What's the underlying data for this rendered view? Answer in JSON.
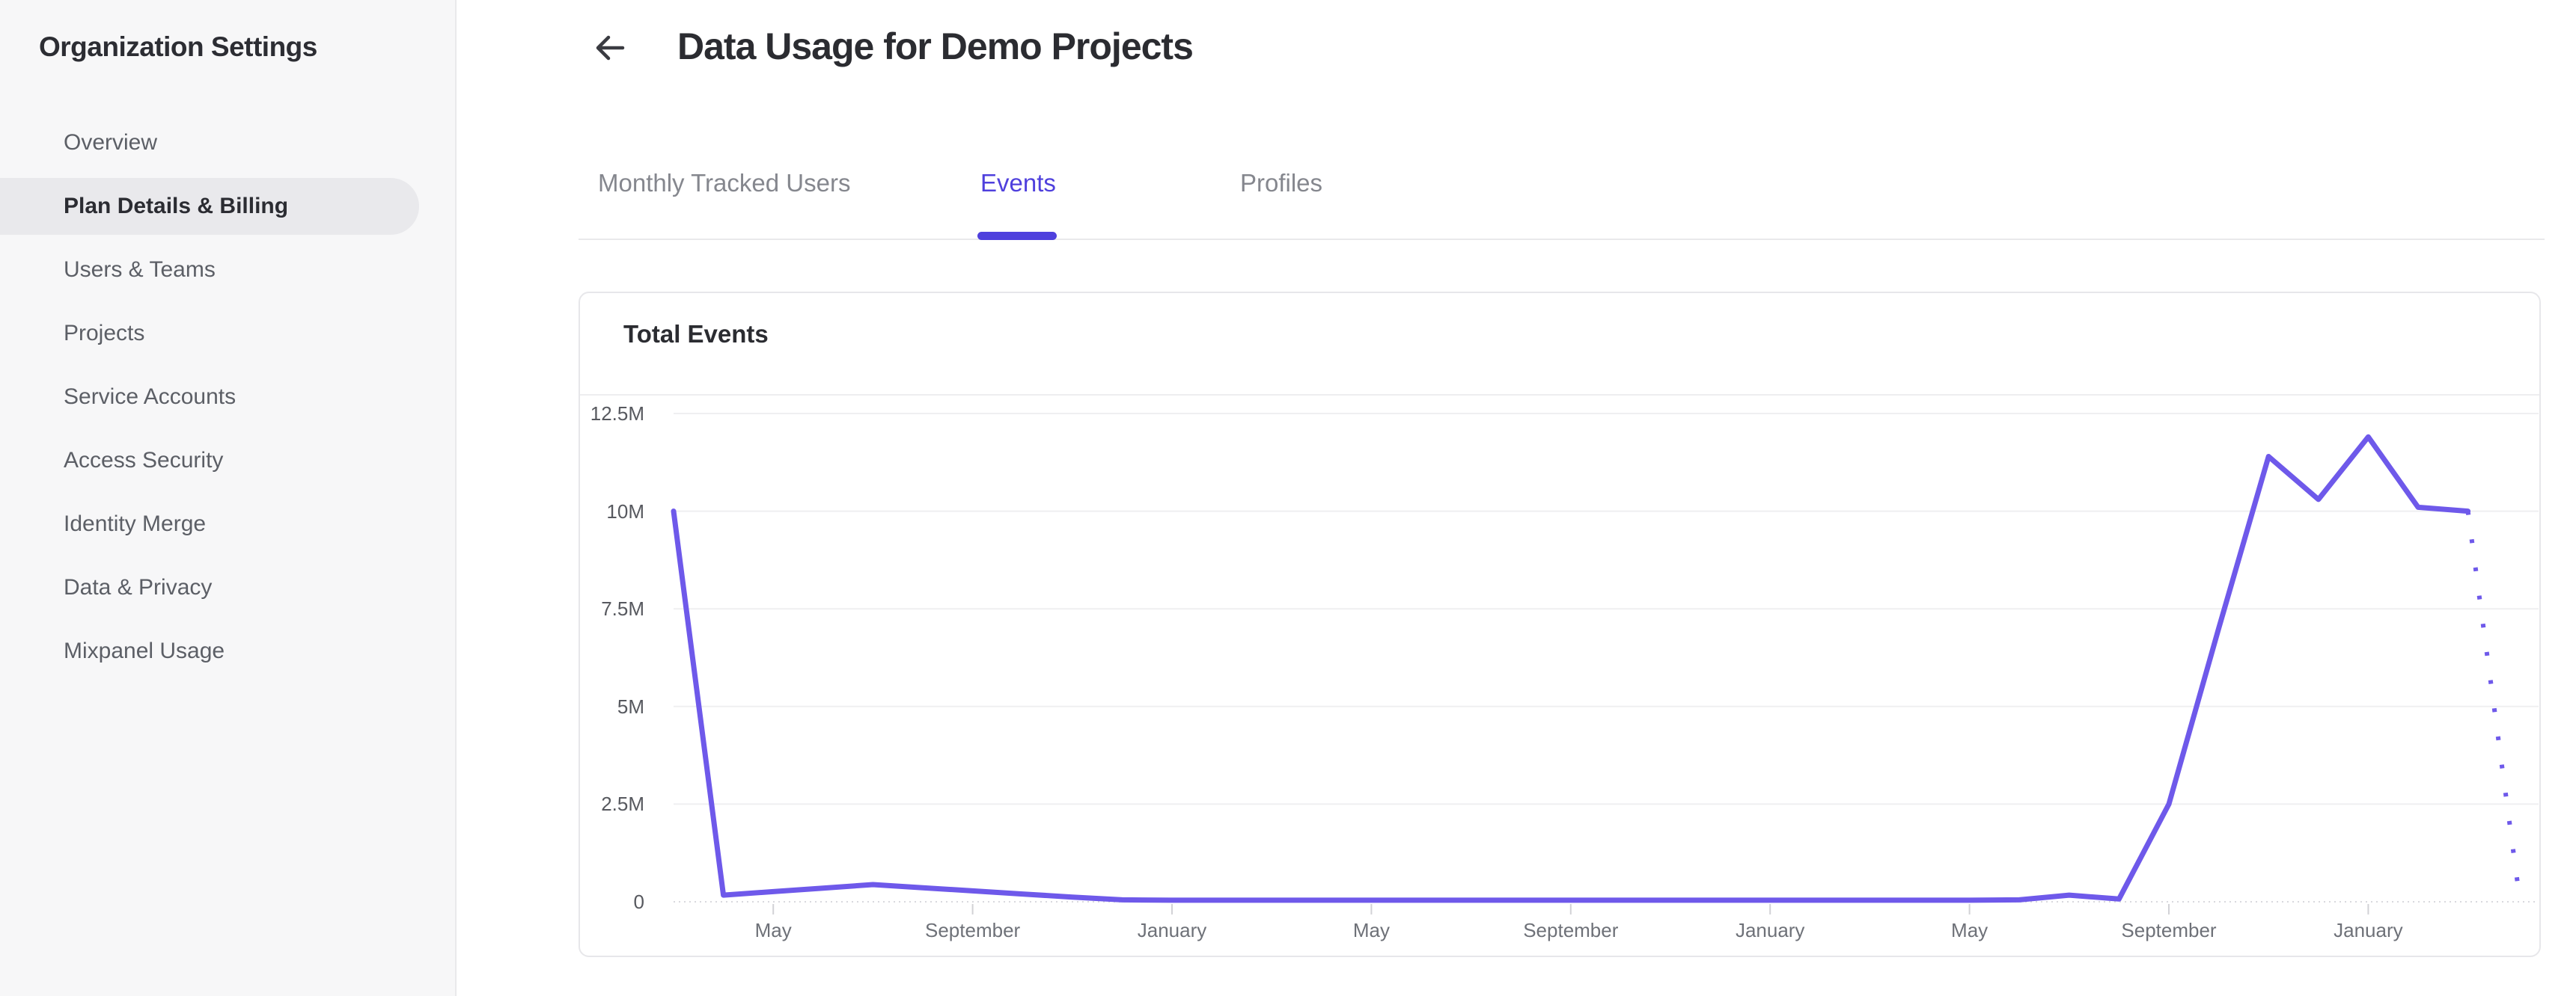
{
  "sidebar": {
    "title": "Organization Settings",
    "items": [
      {
        "label": "Overview",
        "active": false
      },
      {
        "label": "Plan Details & Billing",
        "active": true
      },
      {
        "label": "Users & Teams",
        "active": false
      },
      {
        "label": "Projects",
        "active": false
      },
      {
        "label": "Service Accounts",
        "active": false
      },
      {
        "label": "Access Security",
        "active": false
      },
      {
        "label": "Identity Merge",
        "active": false
      },
      {
        "label": "Data & Privacy",
        "active": false
      },
      {
        "label": "Mixpanel Usage",
        "active": false
      }
    ]
  },
  "header": {
    "title": "Data Usage for Demo Projects"
  },
  "tabs": [
    {
      "label": "Monthly Tracked Users",
      "active": false
    },
    {
      "label": "Events",
      "active": true
    },
    {
      "label": "Profiles",
      "active": false
    }
  ],
  "card": {
    "title": "Total Events"
  },
  "colors": {
    "accent": "#4f40dd",
    "line": "#6e59ea",
    "grid": "#efeff1",
    "axis_dots": "#d9d9de",
    "tick": "#d2d2d6"
  },
  "chart_data": {
    "type": "line",
    "title": "Total Events",
    "xlabel": "",
    "ylabel": "",
    "ylim": [
      0,
      12500000
    ],
    "grid": true,
    "legend": false,
    "y_ticks": [
      {
        "label": "12.5M",
        "value": 12.5
      },
      {
        "label": "10M",
        "value": 10
      },
      {
        "label": "7.5M",
        "value": 7.5
      },
      {
        "label": "5M",
        "value": 5
      },
      {
        "label": "2.5M",
        "value": 2.5
      },
      {
        "label": "0",
        "value": 0
      }
    ],
    "x_ticks": [
      {
        "label": "May",
        "index": 2
      },
      {
        "label": "September",
        "index": 6
      },
      {
        "label": "January",
        "index": 10
      },
      {
        "label": "May",
        "index": 14
      },
      {
        "label": "September",
        "index": 18
      },
      {
        "label": "January",
        "index": 22
      },
      {
        "label": "May",
        "index": 26
      },
      {
        "label": "September",
        "index": 30
      },
      {
        "label": "January",
        "index": 34
      }
    ],
    "value_unit": "millions of events",
    "series": [
      {
        "name": "Total Events",
        "color": "#6e59ea",
        "points": [
          {
            "month": "Mar",
            "value_m": 10.0
          },
          {
            "month": "Apr",
            "value_m": 0.17
          },
          {
            "month": "May",
            "value_m": 0.26
          },
          {
            "month": "Jun",
            "value_m": 0.35
          },
          {
            "month": "Jul",
            "value_m": 0.44
          },
          {
            "month": "Aug",
            "value_m": 0.36
          },
          {
            "month": "Sep",
            "value_m": 0.28
          },
          {
            "month": "Oct",
            "value_m": 0.2
          },
          {
            "month": "Nov",
            "value_m": 0.12
          },
          {
            "month": "Dec",
            "value_m": 0.05
          },
          {
            "month": "Jan",
            "value_m": 0.04
          },
          {
            "month": "Feb",
            "value_m": 0.04
          },
          {
            "month": "Mar",
            "value_m": 0.04
          },
          {
            "month": "Apr",
            "value_m": 0.04
          },
          {
            "month": "May",
            "value_m": 0.04
          },
          {
            "month": "Jun",
            "value_m": 0.04
          },
          {
            "month": "Jul",
            "value_m": 0.04
          },
          {
            "month": "Aug",
            "value_m": 0.04
          },
          {
            "month": "Sep",
            "value_m": 0.04
          },
          {
            "month": "Oct",
            "value_m": 0.04
          },
          {
            "month": "Nov",
            "value_m": 0.04
          },
          {
            "month": "Dec",
            "value_m": 0.04
          },
          {
            "month": "Jan",
            "value_m": 0.04
          },
          {
            "month": "Feb",
            "value_m": 0.04
          },
          {
            "month": "Mar",
            "value_m": 0.04
          },
          {
            "month": "Apr",
            "value_m": 0.04
          },
          {
            "month": "May",
            "value_m": 0.04
          },
          {
            "month": "Jun",
            "value_m": 0.05
          },
          {
            "month": "Jul",
            "value_m": 0.17
          },
          {
            "month": "Aug",
            "value_m": 0.07
          },
          {
            "month": "Sep",
            "value_m": 2.5
          },
          {
            "month": "Oct",
            "value_m": 7.0
          },
          {
            "month": "Nov",
            "value_m": 11.4
          },
          {
            "month": "Dec",
            "value_m": 10.3
          },
          {
            "month": "Jan",
            "value_m": 11.9
          },
          {
            "month": "Feb",
            "value_m": 10.1
          },
          {
            "month": "Mar",
            "value_m": 10.0
          },
          {
            "month": "Apr",
            "value_m": 0.44,
            "projected": true
          }
        ]
      }
    ]
  }
}
